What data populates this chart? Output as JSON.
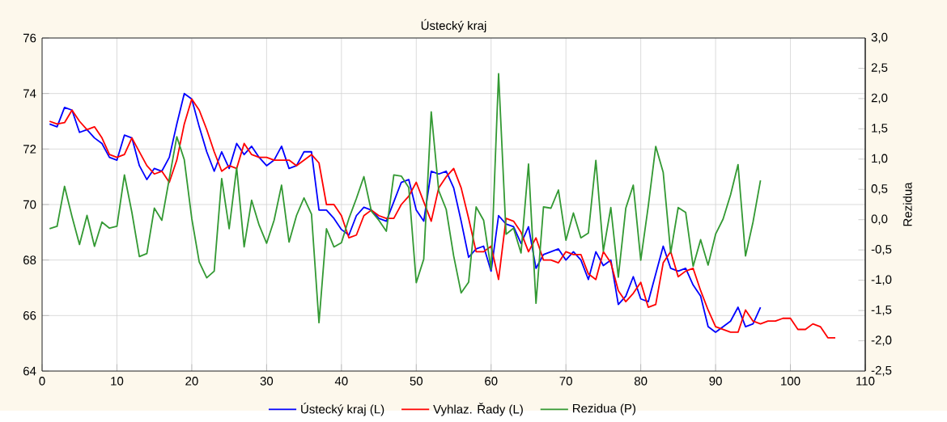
{
  "chart_data": {
    "type": "line",
    "title": "Ústecký kraj",
    "y2label": "Rezidua",
    "xlim": [
      0,
      110
    ],
    "xticks": [
      0,
      10,
      20,
      30,
      40,
      50,
      60,
      70,
      80,
      90,
      100,
      110
    ],
    "ylim": [
      64,
      76
    ],
    "yticks": [
      64,
      66,
      68,
      70,
      72,
      74,
      76
    ],
    "y2lim": [
      -2.5,
      3.0
    ],
    "y2ticks": [
      {
        "value": -2.5,
        "label": "-2,5"
      },
      {
        "value": -2.0,
        "label": "-2,0"
      },
      {
        "value": -1.5,
        "label": "-1,5"
      },
      {
        "value": -1.0,
        "label": "-1,0"
      },
      {
        "value": -0.5,
        "label": "-0,5"
      },
      {
        "value": 0.0,
        "label": "0,0"
      },
      {
        "value": 0.5,
        "label": "0,5"
      },
      {
        "value": 1.0,
        "label": "1,0"
      },
      {
        "value": 1.5,
        "label": "1,5"
      },
      {
        "value": 2.0,
        "label": "2,0"
      },
      {
        "value": 2.5,
        "label": "2,5"
      },
      {
        "value": 3.0,
        "label": "3,0"
      }
    ],
    "grid": true,
    "legend": "bottom",
    "series": [
      {
        "name": "Ústecký kraj (L)",
        "color": "#0000ff",
        "x": [
          1,
          2,
          3,
          4,
          5,
          6,
          7,
          8,
          9,
          10,
          11,
          12,
          13,
          14,
          15,
          16,
          17,
          18,
          19,
          20,
          21,
          22,
          23,
          24,
          25,
          26,
          27,
          28,
          29,
          30,
          31,
          32,
          33,
          34,
          35,
          36,
          37,
          38,
          39,
          40,
          41,
          42,
          43,
          44,
          45,
          46,
          47,
          48,
          49,
          50,
          51,
          52,
          53,
          54,
          55,
          56,
          57,
          58,
          59,
          60,
          61,
          62,
          63,
          64,
          65,
          66,
          67,
          68,
          69,
          70,
          71,
          72,
          73,
          74,
          75,
          76,
          77,
          78,
          79,
          80,
          81,
          82,
          83,
          84,
          85,
          86,
          87,
          88,
          89,
          90,
          91,
          92,
          93,
          94,
          95,
          96
        ],
        "values": [
          72.9,
          72.8,
          73.5,
          73.4,
          72.6,
          72.7,
          72.4,
          72.2,
          71.7,
          71.6,
          72.5,
          72.4,
          71.4,
          70.9,
          71.3,
          71.2,
          71.7,
          72.9,
          74.0,
          73.8,
          72.8,
          71.9,
          71.2,
          71.9,
          71.3,
          72.2,
          71.8,
          72.1,
          71.7,
          71.4,
          71.6,
          72.1,
          71.3,
          71.4,
          71.9,
          71.9,
          69.8,
          69.8,
          69.5,
          69.1,
          68.9,
          69.6,
          69.9,
          69.8,
          69.5,
          69.4,
          70.1,
          70.8,
          70.9,
          69.8,
          69.4,
          71.2,
          71.1,
          71.2,
          70.6,
          69.4,
          68.1,
          68.4,
          68.5,
          67.6,
          69.6,
          69.3,
          69.2,
          68.6,
          69.2,
          67.7,
          68.2,
          68.3,
          68.4,
          68.0,
          68.3,
          68.0,
          67.3,
          68.3,
          67.8,
          68.0,
          66.4,
          66.7,
          67.4,
          66.6,
          66.5,
          67.5,
          68.5,
          67.7,
          67.6,
          67.7,
          67.1,
          66.7,
          65.6,
          65.4,
          65.6,
          65.8,
          66.3,
          65.6,
          65.7,
          66.3
        ]
      },
      {
        "name": "Vyhlaz. Řady (L)",
        "color": "#ff0000",
        "x": [
          1,
          2,
          3,
          4,
          5,
          6,
          7,
          8,
          9,
          10,
          11,
          12,
          13,
          14,
          15,
          16,
          17,
          18,
          19,
          20,
          21,
          22,
          23,
          24,
          25,
          26,
          27,
          28,
          29,
          30,
          31,
          32,
          33,
          34,
          35,
          36,
          37,
          38,
          39,
          40,
          41,
          42,
          43,
          44,
          45,
          46,
          47,
          48,
          49,
          50,
          51,
          52,
          53,
          54,
          55,
          56,
          57,
          58,
          59,
          60,
          61,
          62,
          63,
          64,
          65,
          66,
          67,
          68,
          69,
          70,
          71,
          72,
          73,
          74,
          75,
          76,
          77,
          78,
          79,
          80,
          81,
          82,
          83,
          84,
          85,
          86,
          87,
          88,
          89,
          90,
          91,
          92,
          93,
          94,
          95,
          96,
          97,
          98,
          99,
          100,
          101,
          102,
          103,
          104,
          105,
          106
        ],
        "values": [
          73.0,
          72.9,
          72.95,
          73.4,
          73.0,
          72.7,
          72.8,
          72.4,
          71.8,
          71.7,
          71.8,
          72.4,
          71.9,
          71.4,
          71.1,
          71.2,
          70.8,
          71.6,
          72.9,
          73.8,
          73.4,
          72.7,
          71.9,
          71.2,
          71.4,
          71.3,
          72.2,
          71.8,
          71.7,
          71.7,
          71.6,
          71.6,
          71.6,
          71.4,
          71.6,
          71.8,
          71.5,
          70.0,
          70.0,
          69.6,
          68.8,
          68.9,
          69.6,
          69.8,
          69.6,
          69.5,
          69.5,
          70.0,
          70.3,
          70.8,
          70.1,
          69.4,
          70.6,
          71.0,
          71.3,
          70.6,
          69.5,
          68.3,
          68.3,
          68.5,
          67.3,
          69.5,
          69.4,
          69.0,
          68.3,
          68.8,
          68.0,
          68.0,
          67.9,
          68.3,
          68.2,
          68.2,
          67.5,
          67.3,
          68.3,
          67.9,
          66.9,
          66.5,
          66.8,
          67.2,
          66.3,
          66.4,
          67.9,
          68.3,
          67.4,
          67.6,
          67.7,
          66.9,
          66.2,
          65.6,
          65.5,
          65.4,
          65.4,
          66.2,
          65.8,
          65.7,
          65.8,
          65.8,
          65.9,
          65.9,
          65.5,
          65.5,
          65.7,
          65.6,
          65.2,
          65.2
        ]
      },
      {
        "name": "Rezidua (P)",
        "color": "#339933",
        "axis": "y2",
        "x": [
          1,
          2,
          3,
          4,
          5,
          6,
          7,
          8,
          9,
          10,
          11,
          12,
          13,
          14,
          15,
          16,
          17,
          18,
          19,
          20,
          21,
          22,
          23,
          24,
          25,
          26,
          27,
          28,
          29,
          30,
          31,
          32,
          33,
          34,
          35,
          36,
          37,
          38,
          39,
          40,
          41,
          42,
          43,
          44,
          45,
          46,
          47,
          48,
          49,
          50,
          51,
          52,
          53,
          54,
          55,
          56,
          57,
          58,
          59,
          60,
          61,
          62,
          63,
          64,
          65,
          66,
          67,
          68,
          69,
          70,
          71,
          72,
          73,
          74,
          75,
          76,
          77,
          78,
          79,
          80,
          81,
          82,
          83,
          84,
          85,
          86,
          87,
          88,
          89,
          90,
          91,
          92,
          93,
          94,
          95,
          96
        ],
        "values": [
          -0.15,
          -0.11,
          0.55,
          0.05,
          -0.41,
          0.07,
          -0.44,
          -0.04,
          -0.14,
          -0.11,
          0.74,
          0.12,
          -0.61,
          -0.56,
          0.19,
          -0.01,
          0.68,
          1.37,
          0.99,
          0.02,
          -0.7,
          -0.96,
          -0.85,
          0.68,
          -0.15,
          0.86,
          -0.45,
          0.32,
          -0.09,
          -0.39,
          -0.01,
          0.57,
          -0.37,
          0.07,
          0.36,
          0.09,
          -1.7,
          -0.15,
          -0.45,
          -0.38,
          0.02,
          0.35,
          0.71,
          0.14,
          -0.01,
          -0.19,
          0.74,
          0.72,
          0.53,
          -1.04,
          -0.65,
          1.78,
          0.48,
          0.17,
          -0.6,
          -1.21,
          -1.03,
          0.21,
          -0.01,
          -0.82,
          2.41,
          -0.24,
          -0.14,
          -0.55,
          0.92,
          -1.38,
          0.21,
          0.19,
          0.49,
          -0.34,
          0.11,
          -0.3,
          -0.22,
          0.98,
          -0.52,
          0.2,
          -0.95,
          0.19,
          0.57,
          -0.67,
          0.22,
          1.21,
          0.78,
          -0.55,
          0.2,
          0.12,
          -0.77,
          -0.33,
          -0.75,
          -0.24,
          0.01,
          0.41,
          0.91,
          -0.6,
          -0.04,
          0.65
        ]
      }
    ]
  }
}
